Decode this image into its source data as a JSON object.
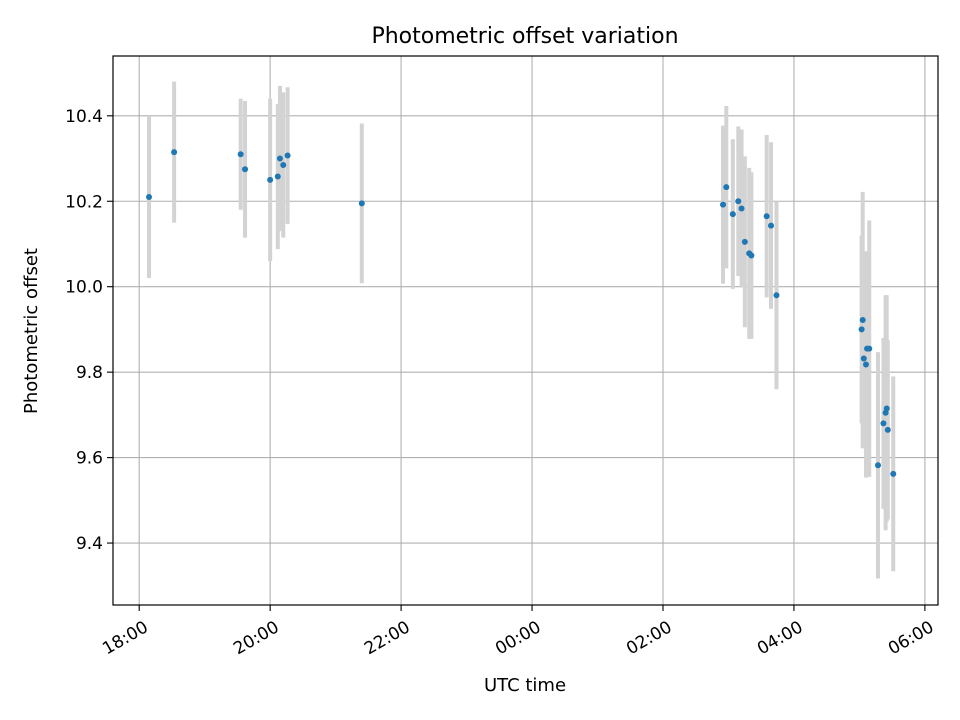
{
  "chart_data": {
    "type": "scatter",
    "title": "Photometric offset variation",
    "xlabel": "UTC time",
    "ylabel": "Photometric offset",
    "x_ticks": [
      "18:00",
      "20:00",
      "22:00",
      "00:00",
      "02:00",
      "04:00",
      "06:00"
    ],
    "x_tick_hours": [
      0,
      2,
      4,
      6,
      8,
      10,
      12
    ],
    "y_ticks": [
      "9.4",
      "9.6",
      "9.8",
      "10.0",
      "10.2",
      "10.4"
    ],
    "y_tick_values": [
      9.4,
      9.6,
      9.8,
      10.0,
      10.2,
      10.4
    ],
    "xlim_hours_since_18_00": [
      -0.4,
      12.2
    ],
    "ylim": [
      9.255,
      10.54
    ],
    "grid": true,
    "marker_color": "#1f77b4",
    "errorbar_color": "#d3d3d3",
    "points": [
      {
        "t": "18:09",
        "y": 10.21,
        "err": 0.19
      },
      {
        "t": "18:32",
        "y": 10.315,
        "err": 0.165
      },
      {
        "t": "19:33",
        "y": 10.31,
        "err": 0.13
      },
      {
        "t": "19:37",
        "y": 10.275,
        "err": 0.16
      },
      {
        "t": "20:00",
        "y": 10.25,
        "err": 0.19
      },
      {
        "t": "20:07",
        "y": 10.258,
        "err": 0.17
      },
      {
        "t": "20:09",
        "y": 10.3,
        "err": 0.17
      },
      {
        "t": "20:12",
        "y": 10.285,
        "err": 0.17
      },
      {
        "t": "20:16",
        "y": 10.307,
        "err": 0.16
      },
      {
        "t": "21:24",
        "y": 10.195,
        "err": 0.187
      },
      {
        "t": "02:55",
        "y": 10.192,
        "err": 0.185
      },
      {
        "t": "02:58",
        "y": 10.233,
        "err": 0.19
      },
      {
        "t": "03:04",
        "y": 10.17,
        "err": 0.175
      },
      {
        "t": "03:09",
        "y": 10.2,
        "err": 0.175
      },
      {
        "t": "03:12",
        "y": 10.183,
        "err": 0.185
      },
      {
        "t": "03:15",
        "y": 10.105,
        "err": 0.2
      },
      {
        "t": "03:19",
        "y": 10.078,
        "err": 0.2
      },
      {
        "t": "03:21",
        "y": 10.073,
        "err": 0.195
      },
      {
        "t": "03:35",
        "y": 10.165,
        "err": 0.19
      },
      {
        "t": "03:39",
        "y": 10.143,
        "err": 0.195
      },
      {
        "t": "03:44",
        "y": 9.98,
        "err": 0.22
      },
      {
        "t": "05:02",
        "y": 9.9,
        "err": 0.22
      },
      {
        "t": "05:03",
        "y": 9.922,
        "err": 0.3
      },
      {
        "t": "05:04",
        "y": 9.832,
        "err": 0.21
      },
      {
        "t": "05:06",
        "y": 9.818,
        "err": 0.265
      },
      {
        "t": "05:07",
        "y": 9.855,
        "err": 0.225
      },
      {
        "t": "05:09",
        "y": 9.855,
        "err": 0.3
      },
      {
        "t": "05:17",
        "y": 9.582,
        "err": 0.265
      },
      {
        "t": "05:22",
        "y": 9.68,
        "err": 0.2
      },
      {
        "t": "05:24",
        "y": 9.705,
        "err": 0.275
      },
      {
        "t": "05:25",
        "y": 9.715,
        "err": 0.265
      },
      {
        "t": "05:26",
        "y": 9.665,
        "err": 0.21
      },
      {
        "t": "05:31",
        "y": 9.562,
        "err": 0.228
      }
    ]
  }
}
